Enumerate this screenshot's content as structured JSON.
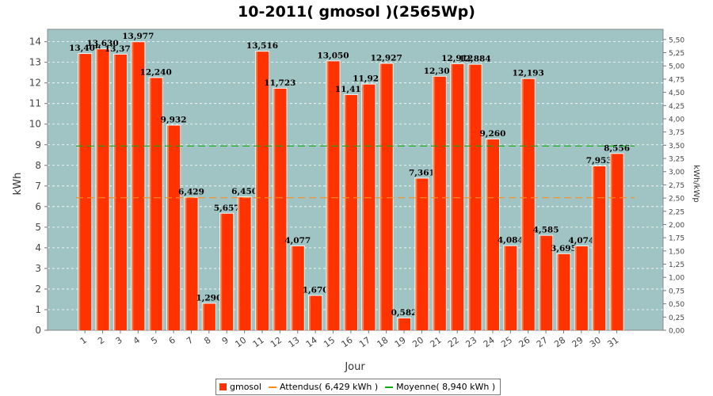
{
  "chart_data": {
    "type": "bar",
    "title": "10-2011( gmosol )(2565Wp)",
    "xlabel": "Jour",
    "ylabel": "kWh",
    "y2label": "kWh/kWp",
    "categories": [
      "1",
      "2",
      "3",
      "4",
      "5",
      "6",
      "7",
      "8",
      "9",
      "10",
      "11",
      "12",
      "13",
      "14",
      "15",
      "16",
      "17",
      "18",
      "19",
      "20",
      "21",
      "22",
      "23",
      "24",
      "25",
      "26",
      "27",
      "28",
      "29",
      "30",
      "31"
    ],
    "series": [
      {
        "name": "gmosol",
        "color": "#ff3300",
        "values": [
          13.406,
          13.63,
          13.375,
          13.977,
          12.24,
          9.932,
          6.429,
          1.29,
          5.657,
          6.45,
          13.516,
          11.723,
          4.077,
          1.67,
          13.05,
          11.416,
          11.924,
          12.927,
          0.582,
          7.361,
          12.304,
          12.912,
          12.884,
          9.26,
          4.084,
          12.193,
          4.585,
          3.695,
          4.074,
          7.953,
          8.556
        ],
        "labels": [
          "13,406",
          "13,630",
          "13,375",
          "13,977",
          "12,240",
          "9,932",
          "6,429",
          "1,290",
          "5,657",
          "6,450",
          "13,516",
          "11,723",
          "4,077",
          "1,670",
          "13,050",
          "11,416",
          "11,924",
          "12,927",
          "0,582",
          "7,361",
          "12,304",
          "12,912",
          "12,884",
          "9,260",
          "4,084",
          "12,193",
          "4,585",
          "3,695",
          "4,074",
          "7,953",
          "8,556"
        ]
      }
    ],
    "reference_lines": [
      {
        "name": "Attendus( 6,429 kWh )",
        "value": 6.429,
        "color": "#ff8c1a"
      },
      {
        "name": "Moyenne( 8,940 kWh )",
        "value": 8.94,
        "color": "#11aa11"
      }
    ],
    "ylim": [
      0,
      14.6
    ],
    "yticks": [
      "0",
      "1",
      "2",
      "3",
      "4",
      "5",
      "6",
      "7",
      "8",
      "9",
      "10",
      "11",
      "12",
      "13",
      "14"
    ],
    "y2lim": [
      0,
      5.692
    ],
    "y2ticks": [
      "0,00",
      "0,25",
      "0,50",
      "0,75",
      "1,00",
      "1,25",
      "1,50",
      "1,75",
      "2,00",
      "2,25",
      "2,50",
      "2,75",
      "3,00",
      "3,25",
      "3,50",
      "3,75",
      "4,00",
      "4,25",
      "4,50",
      "4,75",
      "5,00",
      "5,25",
      "5,50"
    ],
    "grid": true,
    "legend_position": "bottom",
    "plot_background": "#9fc4c3"
  }
}
